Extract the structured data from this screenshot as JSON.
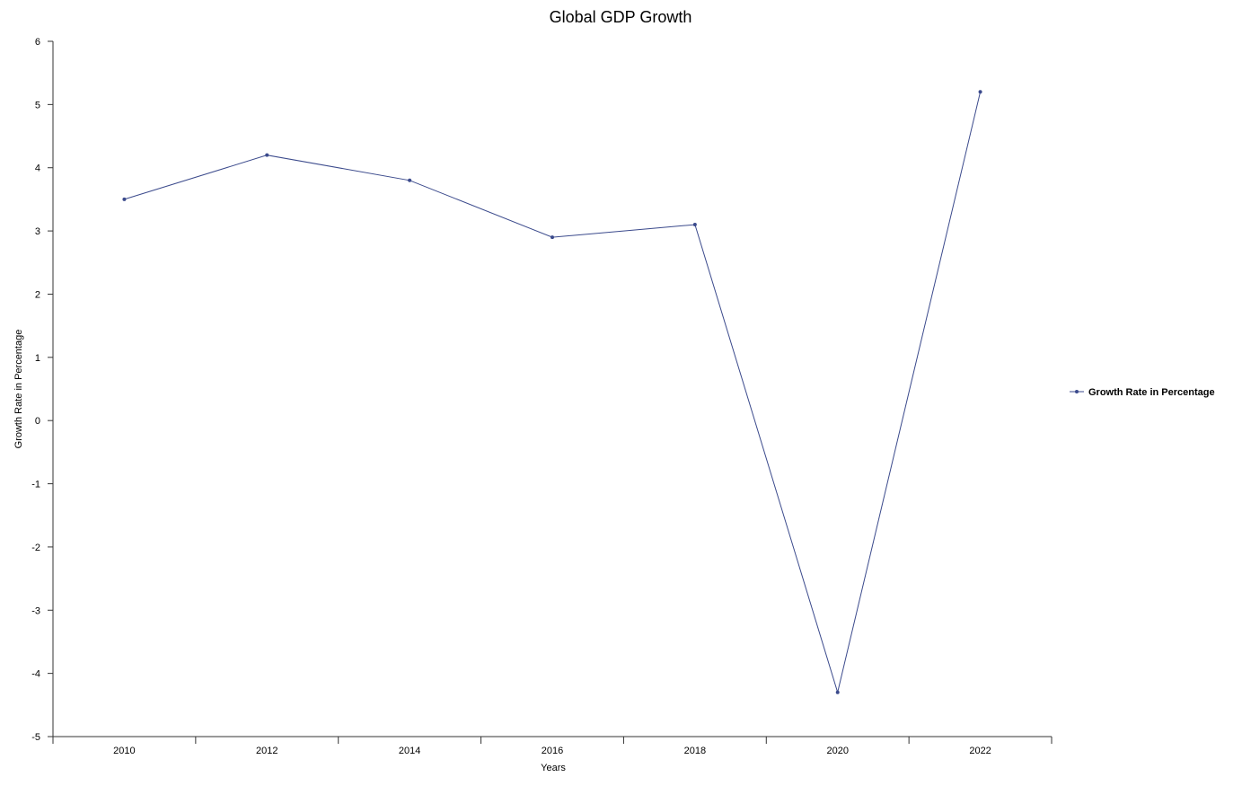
{
  "chart_data": {
    "type": "line",
    "title": "Global GDP Growth",
    "xlabel": "Years",
    "ylabel": "Growth Rate in Percentage",
    "categories": [
      "2010",
      "2012",
      "2014",
      "2016",
      "2018",
      "2020",
      "2022"
    ],
    "yticks": [
      "6",
      "5",
      "4",
      "3",
      "2",
      "1",
      "0",
      "-1",
      "-2",
      "-3",
      "-4",
      "-5"
    ],
    "ylim": [
      -5,
      6
    ],
    "grid": false,
    "legend_position": "right",
    "series": [
      {
        "name": "Growth Rate in Percentage",
        "color": "#3b4a8c",
        "values": [
          3.5,
          4.2,
          3.8,
          2.9,
          3.1,
          -4.3,
          5.2
        ]
      }
    ]
  }
}
